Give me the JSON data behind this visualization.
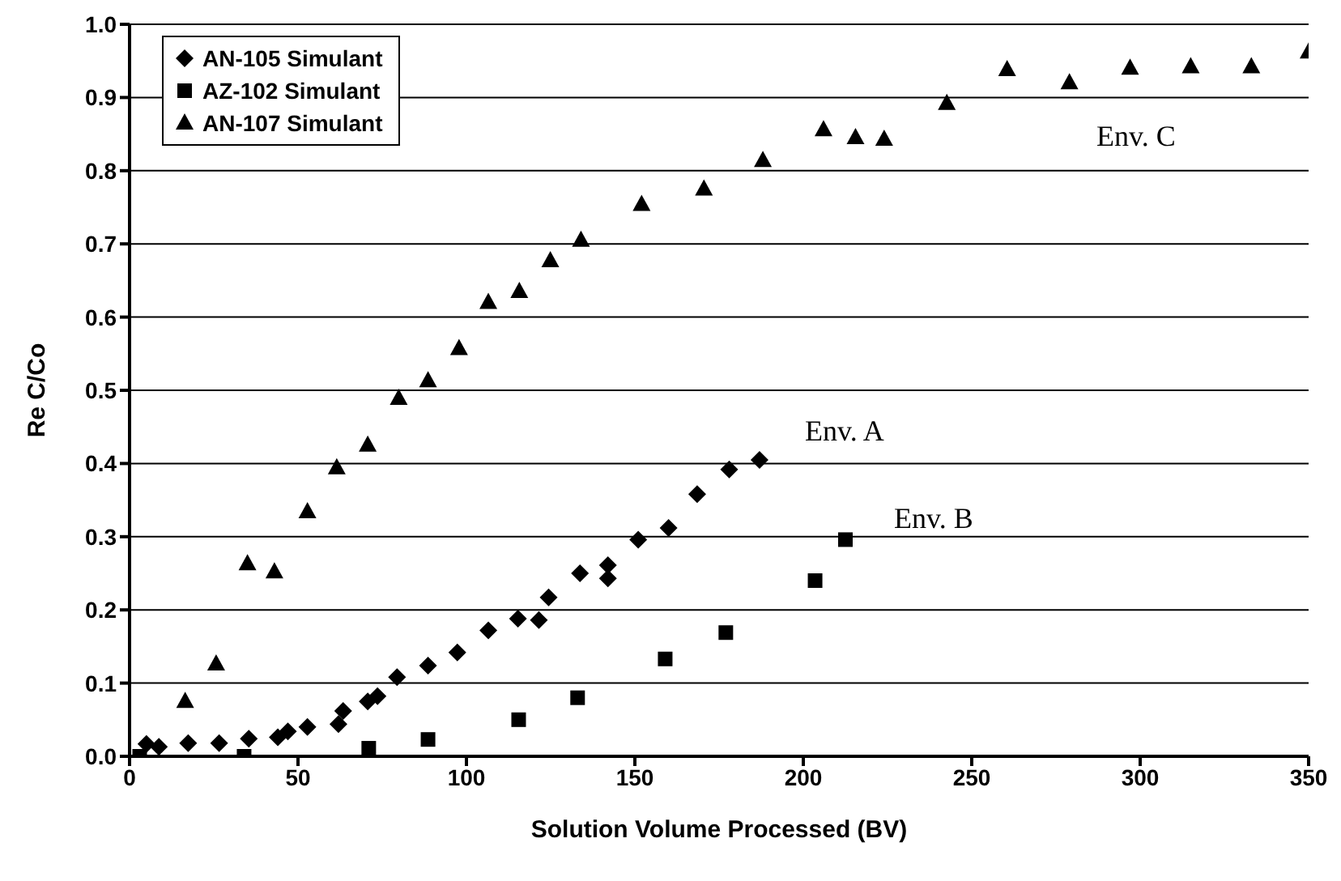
{
  "chart_data": {
    "type": "scatter",
    "xlabel": "Solution Volume Processed (BV)",
    "ylabel": "Re C/Co",
    "xlim": [
      0,
      350
    ],
    "xticks": [
      0,
      50,
      100,
      150,
      200,
      250,
      300,
      350
    ],
    "ylim": [
      0,
      1
    ],
    "yticks": [
      {
        "value": 0,
        "label": "0.0"
      },
      0.1,
      0.2,
      0.3,
      0.4,
      0.5,
      0.6,
      0.7,
      0.8,
      0.9,
      {
        "value": 1,
        "label": "1.0"
      }
    ],
    "grid": "y",
    "legend": "top left",
    "annotations": [
      "Env. A",
      "Env. B",
      "Env. C"
    ],
    "series": [
      {
        "name": "AN-105 Simulant",
        "color": "#000000",
        "marker": "diamond",
        "x": [
          5,
          8.7,
          17.4,
          26.6,
          35.4,
          44,
          47,
          52.8,
          62,
          63.4,
          70.7,
          73.6,
          79.4,
          88.6,
          97.3,
          106.5,
          115.3,
          121.5,
          124.4,
          133.7,
          142,
          142,
          151,
          160,
          168.5,
          178,
          187
        ],
        "values": [
          0.017,
          0.013,
          0.018,
          0.018,
          0.024,
          0.026,
          0.034,
          0.04,
          0.044,
          0.062,
          0.075,
          0.082,
          0.108,
          0.124,
          0.142,
          0.172,
          0.188,
          0.186,
          0.217,
          0.25,
          0.261,
          0.243,
          0.296,
          0.312,
          0.358,
          0.392,
          0.405
        ]
      },
      {
        "name": "AZ-102 Simulant",
        "color": "#000000",
        "marker": "square",
        "x": [
          3,
          34,
          71,
          88.6,
          115.5,
          133,
          159,
          177,
          203.5,
          212.5
        ],
        "values": [
          0,
          0,
          0.011,
          0.023,
          0.05,
          0.08,
          0.133,
          0.169,
          0.24,
          0.296
        ]
      },
      {
        "name": "AN-107 Simulant",
        "color": "#000000",
        "marker": "triangle",
        "x": [
          16.5,
          25.7,
          35,
          43,
          52.8,
          61.5,
          70.7,
          79.9,
          88.6,
          97.8,
          106.5,
          115.7,
          124.9,
          134,
          152,
          170.5,
          188,
          206,
          215.5,
          224,
          242.6,
          260.5,
          279,
          297,
          315,
          333,
          350
        ],
        "values": [
          0.075,
          0.126,
          0.263,
          0.252,
          0.334,
          0.394,
          0.425,
          0.489,
          0.513,
          0.557,
          0.62,
          0.635,
          0.677,
          0.705,
          0.754,
          0.775,
          0.814,
          0.856,
          0.845,
          0.843,
          0.892,
          0.938,
          0.92,
          0.94,
          0.942,
          0.942,
          0.962
        ]
      }
    ]
  }
}
